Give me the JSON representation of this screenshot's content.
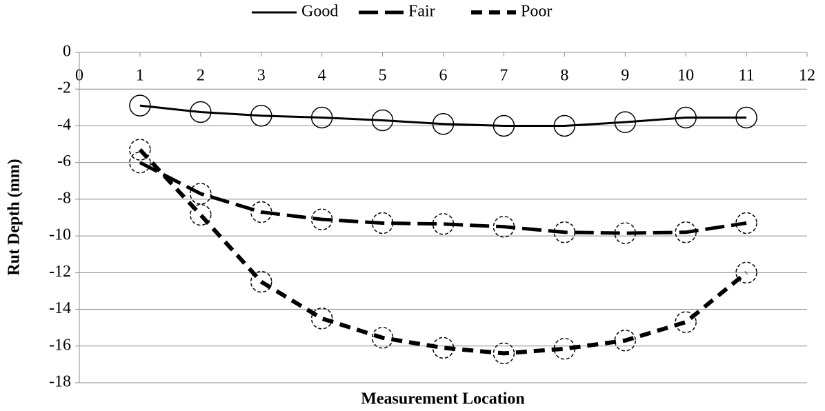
{
  "chart_data": {
    "type": "line",
    "x_label": "Measurement Location",
    "y_label": "Rut Depth (mm)",
    "x": [
      1,
      2,
      3,
      4,
      5,
      6,
      7,
      8,
      9,
      10,
      11
    ],
    "series": [
      {
        "name": "Good",
        "color": "#000000",
        "line_style": "solid",
        "values": [
          -2.9,
          -3.25,
          -3.45,
          -3.55,
          -3.7,
          -3.9,
          -4.0,
          -4.0,
          -3.8,
          -3.55,
          -3.55
        ]
      },
      {
        "name": "Fair",
        "color": "#000000",
        "line_style": "long-dash",
        "values": [
          -6.0,
          -7.7,
          -8.7,
          -9.1,
          -9.3,
          -9.35,
          -9.5,
          -9.8,
          -9.85,
          -9.8,
          -9.3
        ]
      },
      {
        "name": "Poor",
        "color": "#000000",
        "line_style": "dash",
        "values": [
          -5.3,
          -8.85,
          -12.5,
          -14.5,
          -15.55,
          -16.1,
          -16.4,
          -16.15,
          -15.7,
          -14.7,
          -12.0
        ]
      }
    ],
    "xlim": [
      0,
      12
    ],
    "xticks": [
      0,
      1,
      2,
      3,
      4,
      5,
      6,
      7,
      8,
      9,
      10,
      11,
      12
    ],
    "ylim": [
      -18,
      0
    ],
    "yticks": [
      0,
      -2,
      -4,
      -6,
      -8,
      -10,
      -12,
      -14,
      -16,
      -18
    ],
    "grid": true,
    "legend": "top"
  }
}
